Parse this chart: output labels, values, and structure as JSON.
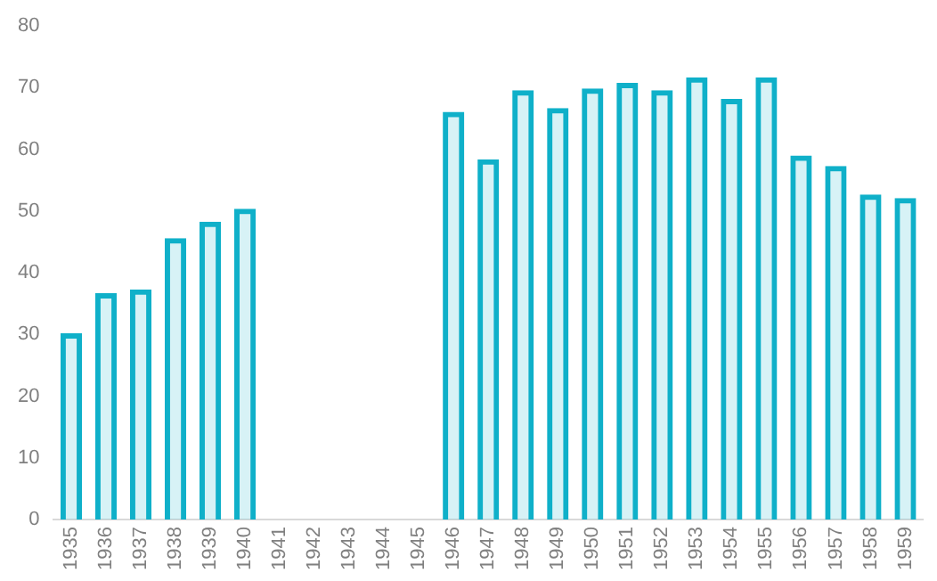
{
  "chart_data": {
    "type": "bar",
    "categories": [
      "1935",
      "1936",
      "1937",
      "1938",
      "1939",
      "1940",
      "1941",
      "1942",
      "1943",
      "1944",
      "1945",
      "1946",
      "1947",
      "1948",
      "1949",
      "1950",
      "1951",
      "1952",
      "1953",
      "1954",
      "1955",
      "1956",
      "1957",
      "1958",
      "1959"
    ],
    "values": [
      30.2,
      36.7,
      37.3,
      45.6,
      48.3,
      50.4,
      null,
      null,
      null,
      null,
      null,
      66.1,
      58.4,
      69.6,
      66.7,
      69.9,
      70.8,
      69.6,
      71.7,
      68.2,
      71.7,
      59.0,
      57.3,
      52.7,
      52.1
    ],
    "color": "#0fb0c9",
    "ylim": [
      0,
      80
    ],
    "yticks": [
      0,
      10,
      20,
      30,
      40,
      50,
      60,
      70,
      80
    ],
    "grid": false
  }
}
